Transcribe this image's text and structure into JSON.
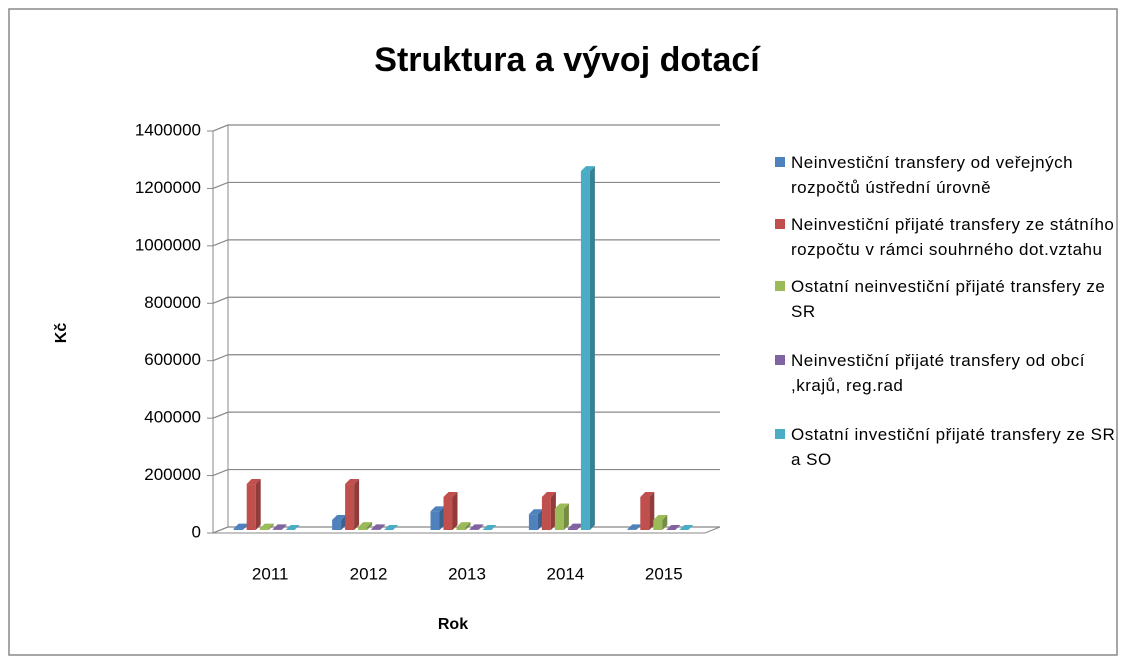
{
  "chart_data": {
    "type": "bar3d",
    "title": "Struktura a vývoj dotací",
    "x_label": "Rok",
    "y_label": "Kč",
    "categories": [
      "2011",
      "2012",
      "2013",
      "2014",
      "2015"
    ],
    "series": [
      {
        "name": "Neinvestiční transfery od veřejných rozpočtů ústřední úrovně",
        "color": "#4f81bd",
        "values": [
          5000,
          35000,
          65000,
          55000,
          2000
        ]
      },
      {
        "name": "Neinvestiční přijaté transfery ze státního rozpočtu v rámci souhrného dot.vztahu",
        "color": "#c0504d",
        "values": [
          160000,
          160000,
          115000,
          115000,
          115000
        ]
      },
      {
        "name": "Ostatní neinvestiční přijaté transfery ze SR",
        "color": "#9bbb59",
        "values": [
          5000,
          10000,
          10000,
          75000,
          35000
        ]
      },
      {
        "name": "Neinvestiční přijaté transfery od obcí ,krajů, reg.rad",
        "color": "#8064a2",
        "values": [
          2000,
          2000,
          2000,
          5000,
          0
        ]
      },
      {
        "name": "Ostatní investiční přijaté transfery ze SR a SO",
        "color": "#4bacc6",
        "values": [
          0,
          0,
          0,
          1250000,
          0
        ]
      }
    ],
    "ylim": [
      0,
      1400000
    ],
    "yticks": [
      0,
      200000,
      400000,
      600000,
      800000,
      1000000,
      1200000,
      1400000
    ],
    "grid": true,
    "legend": "right"
  }
}
